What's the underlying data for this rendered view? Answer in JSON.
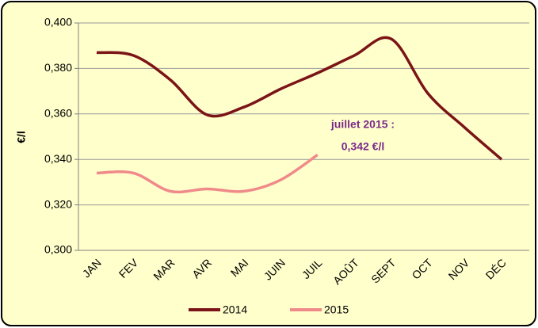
{
  "chart_data": {
    "type": "line",
    "y_label": "€/l",
    "categories": [
      "JAN",
      "FEV",
      "MAR",
      "AVR",
      "MAI",
      "JUIN",
      "JUIL",
      "AOÛT",
      "SEPT",
      "OCT",
      "NOV",
      "DÉC"
    ],
    "series": [
      {
        "name": "2014",
        "color": "#7b1416",
        "values": [
          0.387,
          0.3857,
          0.375,
          0.3596,
          0.363,
          0.371,
          0.378,
          0.3857,
          0.393,
          0.369,
          0.354,
          0.34
        ]
      },
      {
        "name": "2015",
        "color": "#f08a8a",
        "values": [
          0.334,
          0.334,
          0.326,
          0.327,
          0.326,
          0.331,
          0.342,
          null,
          null,
          null,
          null,
          null
        ]
      }
    ],
    "ylim": [
      0.3,
      0.4
    ],
    "yticks": [
      {
        "value": 0.3,
        "label": "0,300"
      },
      {
        "value": 0.32,
        "label": "0,320"
      },
      {
        "value": 0.34,
        "label": "0,340"
      },
      {
        "value": 0.36,
        "label": "0,360"
      },
      {
        "value": 0.38,
        "label": "0,380"
      },
      {
        "value": 0.4,
        "label": "0,400"
      }
    ],
    "grid": true,
    "annotations": [
      "juillet 2015 :",
      "0,342 €/l"
    ],
    "annotation_color": "#7a2a8a",
    "legend": "bottom"
  }
}
